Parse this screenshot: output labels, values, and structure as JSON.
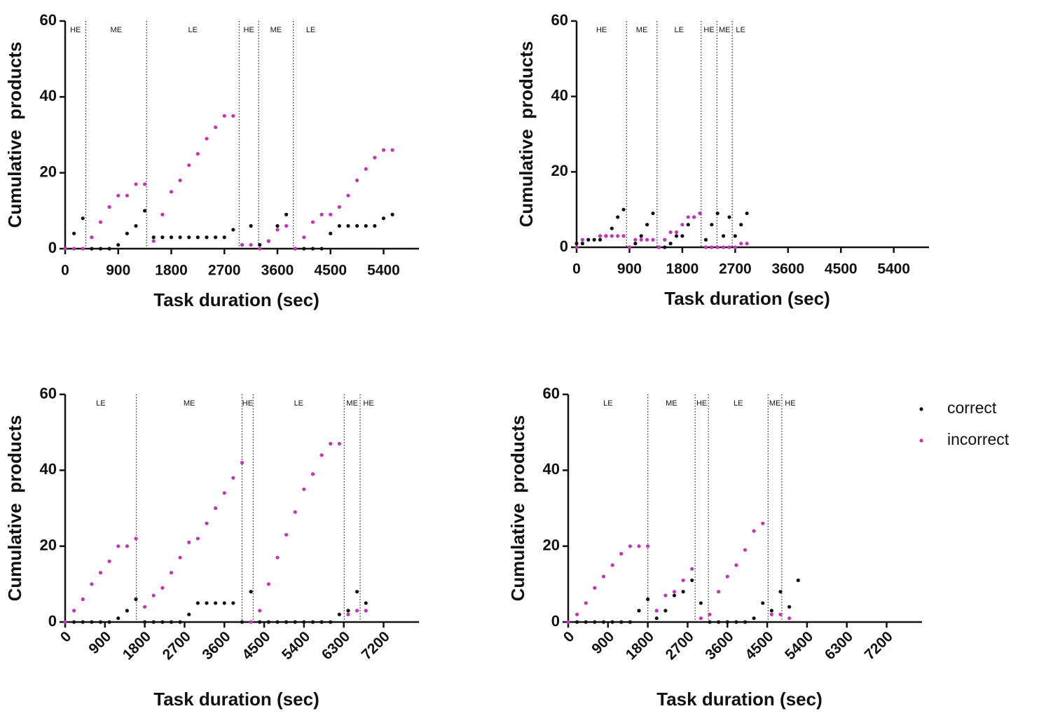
{
  "chart_data": [
    {
      "type": "scatter",
      "x_label": "Task duration (sec)",
      "y_label": "Cumulative  products",
      "xlim": [
        0,
        6000
      ],
      "ylim": [
        0,
        60
      ],
      "xticks": [
        0,
        900,
        1800,
        2700,
        3600,
        4500,
        5400
      ],
      "yticks": [
        0,
        20,
        40,
        60
      ],
      "x_tick_rotation": 0,
      "boundaries": [
        350,
        1380,
        2950,
        3280,
        3870
      ],
      "phase_labels": [
        "HE",
        "ME",
        "LE",
        "HE",
        "ME",
        "LE"
      ],
      "x": [
        0,
        150,
        300,
        450,
        600,
        750,
        900,
        1050,
        1200,
        1350,
        1500,
        1650,
        1800,
        1950,
        2100,
        2250,
        2400,
        2550,
        2700,
        2850,
        3000,
        3150,
        3300,
        3450,
        3600,
        3750,
        3900,
        4050,
        4200,
        4350,
        4500,
        4650,
        4800,
        4950,
        5100,
        5250,
        5400,
        5550
      ],
      "series": [
        {
          "color": "#111111",
          "values": [
            0,
            4,
            8,
            0,
            0,
            0,
            1,
            4,
            6,
            10,
            3,
            3,
            3,
            3,
            3,
            3,
            3,
            3,
            3,
            5,
            1,
            6,
            1,
            2,
            6,
            9,
            0,
            0,
            0,
            0,
            4,
            6,
            6,
            6,
            6,
            6,
            8,
            9
          ]
        },
        {
          "color": "#c435b5",
          "values": [
            0,
            0,
            0,
            3,
            7,
            11,
            14,
            14,
            17,
            17,
            2,
            9,
            15,
            18,
            22,
            25,
            29,
            32,
            35,
            35,
            1,
            1,
            0,
            2,
            5,
            6,
            0,
            3,
            7,
            9,
            9,
            11,
            14,
            18,
            21,
            24,
            26,
            26
          ]
        }
      ]
    },
    {
      "type": "scatter",
      "x_label": "Task duration (sec)",
      "y_label": "Cumulative  products",
      "xlim": [
        0,
        6000
      ],
      "ylim": [
        0,
        60
      ],
      "xticks": [
        0,
        900,
        1800,
        2700,
        3600,
        4500,
        5400
      ],
      "yticks": [
        0,
        20,
        40,
        60
      ],
      "x_tick_rotation": 0,
      "boundaries": [
        850,
        1370,
        2120,
        2390,
        2650
      ],
      "phase_labels": [
        "HE",
        "ME",
        "LE",
        "HE",
        "ME",
        "LE"
      ],
      "x": [
        0,
        100,
        200,
        300,
        400,
        500,
        600,
        700,
        800,
        900,
        1000,
        1100,
        1200,
        1300,
        1400,
        1500,
        1600,
        1700,
        1800,
        1900,
        2000,
        2100,
        2200,
        2300,
        2400,
        2500,
        2600,
        2700,
        2800,
        2900
      ],
      "series": [
        {
          "color": "#111111",
          "values": [
            1,
            1,
            2,
            2,
            2,
            3,
            5,
            8,
            10,
            0,
            1,
            3,
            6,
            9,
            0,
            0,
            1,
            3,
            3,
            6,
            8,
            9,
            2,
            6,
            9,
            3,
            8,
            3,
            6,
            9
          ]
        },
        {
          "color": "#c435b5",
          "values": [
            0,
            2,
            null,
            null,
            3,
            3,
            3,
            3,
            3,
            0,
            2,
            2,
            2,
            2,
            0,
            2,
            4,
            4,
            6,
            8,
            8,
            9,
            0,
            0,
            0,
            0,
            0,
            0,
            1,
            1
          ]
        }
      ]
    },
    {
      "type": "scatter",
      "x_label": "Task duration (sec)",
      "y_label": "Cumulative  products",
      "xlim": [
        0,
        8000
      ],
      "ylim": [
        0,
        60
      ],
      "xticks": [
        0,
        900,
        1800,
        2700,
        3600,
        4500,
        5400,
        6300,
        7200
      ],
      "yticks": [
        0,
        20,
        40,
        60
      ],
      "x_tick_rotation": -45,
      "boundaries": [
        1610,
        4000,
        4250,
        6310,
        6670
      ],
      "phase_labels": [
        "LE",
        "ME",
        "HE",
        "LE",
        "ME",
        "HE"
      ],
      "x": [
        0,
        200,
        400,
        600,
        800,
        1000,
        1200,
        1400,
        1600,
        1800,
        2000,
        2200,
        2400,
        2600,
        2800,
        3000,
        3200,
        3400,
        3600,
        3800,
        4000,
        4200,
        4400,
        4600,
        4800,
        5000,
        5200,
        5400,
        5600,
        5800,
        6000,
        6200,
        6400,
        6600,
        6800
      ],
      "series": [
        {
          "color": "#111111",
          "values": [
            0,
            0,
            0,
            0,
            0,
            0,
            1,
            3,
            6,
            0,
            0,
            0,
            0,
            0,
            2,
            5,
            5,
            5,
            5,
            5,
            0,
            8,
            0,
            0,
            0,
            0,
            0,
            0,
            0,
            0,
            0,
            2,
            3,
            8,
            5
          ]
        },
        {
          "color": "#c435b5",
          "values": [
            0,
            3,
            6,
            10,
            13,
            16,
            20,
            20,
            22,
            4,
            7,
            9,
            13,
            17,
            21,
            22,
            26,
            30,
            34,
            38,
            42,
            0,
            3,
            10,
            17,
            23,
            29,
            35,
            39,
            44,
            47,
            47,
            2,
            3,
            3
          ]
        }
      ]
    },
    {
      "type": "scatter",
      "x_label": "Task duration (sec)",
      "y_label": "Cumulative  products",
      "xlim": [
        0,
        8000
      ],
      "ylim": [
        0,
        60
      ],
      "xticks": [
        0,
        900,
        1800,
        2700,
        3600,
        4500,
        5400,
        6300,
        7200
      ],
      "yticks": [
        0,
        20,
        40,
        60
      ],
      "x_tick_rotation": -45,
      "boundaries": [
        1800,
        2870,
        3170,
        4520,
        4830
      ],
      "phase_labels": [
        "LE",
        "ME",
        "HE",
        "LE",
        "ME",
        "HE"
      ],
      "legend": true,
      "x": [
        0,
        200,
        400,
        600,
        800,
        1000,
        1200,
        1400,
        1600,
        1800,
        2000,
        2200,
        2400,
        2600,
        2800,
        3000,
        3200,
        3400,
        3600,
        3800,
        4000,
        4200,
        4400,
        4600,
        4800,
        5000,
        5200
      ],
      "series": [
        {
          "name": "correct",
          "color": "#111111",
          "values": [
            0,
            0,
            0,
            0,
            0,
            0,
            0,
            0,
            3,
            6,
            1,
            3,
            7,
            8,
            11,
            5,
            0,
            0,
            0,
            0,
            0,
            1,
            5,
            3,
            8,
            4,
            11
          ]
        },
        {
          "name": "incorrect",
          "color": "#c435b5",
          "values": [
            0,
            2,
            5,
            9,
            12,
            15,
            18,
            20,
            20,
            20,
            3,
            7,
            8,
            11,
            14,
            1,
            2,
            8,
            12,
            15,
            19,
            24,
            26,
            2,
            2,
            1,
            null
          ]
        }
      ]
    }
  ]
}
